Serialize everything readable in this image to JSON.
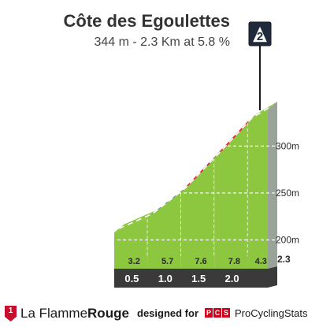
{
  "header": {
    "title": "Côte des Egoulettes",
    "subtitle": "344 m - 2.3 Km at 5.8 %"
  },
  "badge": {
    "category": "2",
    "icon": "mountain-category-icon"
  },
  "chart_data": {
    "type": "area",
    "title": "Côte des Egoulettes",
    "subtitle": "344 m - 2.3 Km at 5.8 %",
    "x_unit": "km",
    "segments": [
      {
        "start_km": 0.0,
        "end_km": 0.5,
        "gradient": 3.2
      },
      {
        "start_km": 0.5,
        "end_km": 1.0,
        "gradient": 5.7
      },
      {
        "start_km": 1.0,
        "end_km": 1.5,
        "gradient": 7.6
      },
      {
        "start_km": 1.5,
        "end_km": 2.0,
        "gradient": 7.8
      },
      {
        "start_km": 2.0,
        "end_km": 2.3,
        "gradient": 4.3
      }
    ],
    "km_ticks": [
      "0.5",
      "1.0",
      "1.5",
      "2.0",
      "2.3"
    ],
    "altitude_ticks": [
      "200m",
      "250m",
      "300m"
    ],
    "start_altitude_m": 213,
    "summit_altitude_m": 344,
    "gradient_colors": {
      "low": "#8dc63f",
      "medium": "#1f5b8c",
      "high": "#e8253d"
    },
    "axis_color": "#3a3a3a",
    "ground_color": "#a99f95"
  },
  "footer": {
    "brand_icon_label": "1",
    "brand_name_light": "La Flamme",
    "brand_name_bold": "Rouge",
    "designed_by": "designed for",
    "pcs_letters": [
      "P",
      "C",
      "S"
    ],
    "pcs_name": "ProCyclingStats"
  }
}
